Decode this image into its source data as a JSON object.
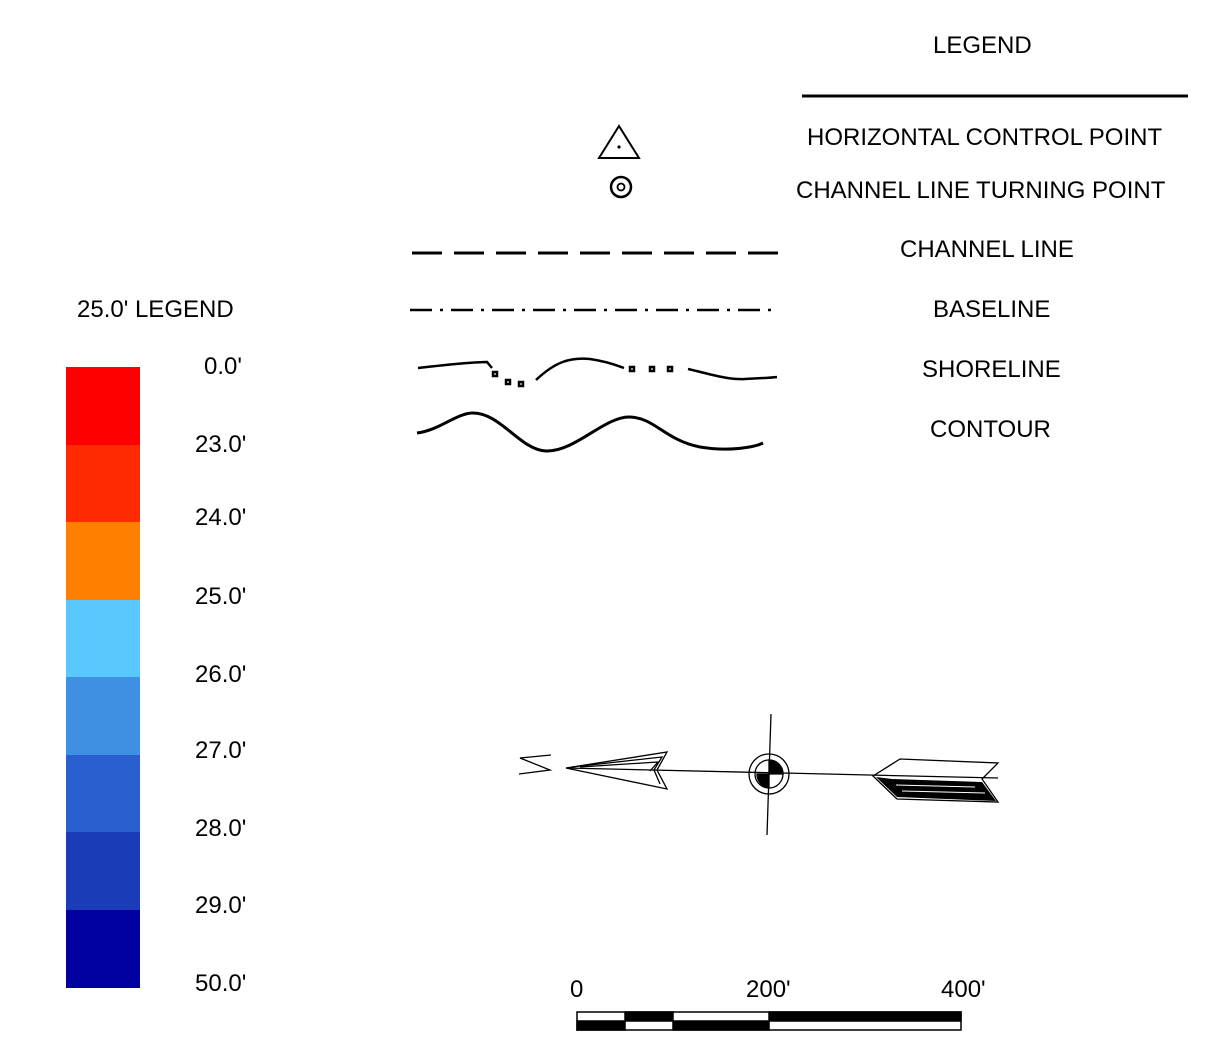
{
  "legend": {
    "title": "LEGEND",
    "items": [
      {
        "symbol": "triangle-dot",
        "label": "HORIZONTAL CONTROL POINT"
      },
      {
        "symbol": "target-circle",
        "label": "CHANNEL LINE TURNING POINT"
      },
      {
        "symbol": "dashed-line",
        "label": "CHANNEL LINE"
      },
      {
        "symbol": "dash-dot-line",
        "label": "BASELINE"
      },
      {
        "symbol": "broken-wavy-line",
        "label": "SHORELINE"
      },
      {
        "symbol": "wavy-line",
        "label": "CONTOUR"
      }
    ]
  },
  "depth_legend": {
    "title": "25.0' LEGEND",
    "labels": [
      "0.0'",
      "23.0'",
      "24.0'",
      "25.0'",
      "26.0'",
      "27.0'",
      "28.0'",
      "29.0'",
      "50.0'"
    ],
    "colors": [
      "#ff0000",
      "#ff2a00",
      "#ff8000",
      "#5ac8ff",
      "#3f8fe2",
      "#2a5fd0",
      "#1a3cb8",
      "#0000a0"
    ]
  },
  "north_arrow": {
    "letter": "N"
  },
  "scale_bar": {
    "labels": [
      "0",
      "200'",
      "400'"
    ]
  }
}
